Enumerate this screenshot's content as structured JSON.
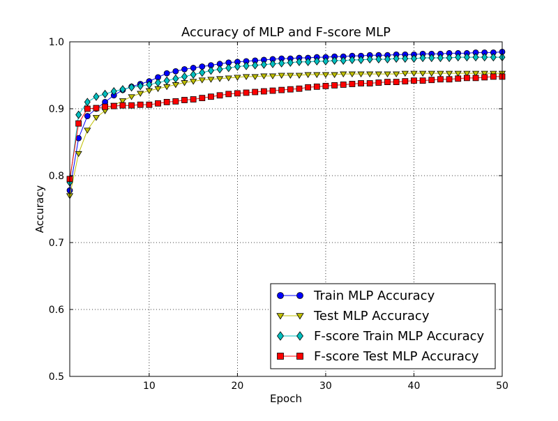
{
  "chart_data": {
    "type": "line",
    "title": "Accuracy of MLP and F-score MLP",
    "xlabel": "Epoch",
    "ylabel": "Accuracy",
    "xlim": [
      1,
      50
    ],
    "ylim": [
      0.5,
      1.0
    ],
    "xticks": [
      10,
      20,
      30,
      40,
      50
    ],
    "xtick_labels": [
      "10",
      "20",
      "30",
      "40",
      "50"
    ],
    "yticks": [
      0.5,
      0.6,
      0.7,
      0.8,
      0.9,
      1.0
    ],
    "ytick_labels": [
      "0.5",
      "0.6",
      "0.7",
      "0.8",
      "0.9",
      "1.0"
    ],
    "grid": true,
    "legend_position": "lower-right",
    "x": [
      1,
      2,
      3,
      4,
      5,
      6,
      7,
      8,
      9,
      10,
      11,
      12,
      13,
      14,
      15,
      16,
      17,
      18,
      19,
      20,
      21,
      22,
      23,
      24,
      25,
      26,
      27,
      28,
      29,
      30,
      31,
      32,
      33,
      34,
      35,
      36,
      37,
      38,
      39,
      40,
      41,
      42,
      43,
      44,
      45,
      46,
      47,
      48,
      49,
      50
    ],
    "series": [
      {
        "name": "Train MLP Accuracy",
        "color": "#0000ff",
        "marker": "circle",
        "values": [
          0.778,
          0.856,
          0.889,
          0.9,
          0.91,
          0.92,
          0.928,
          0.933,
          0.937,
          0.941,
          0.947,
          0.953,
          0.956,
          0.959,
          0.961,
          0.963,
          0.965,
          0.967,
          0.969,
          0.97,
          0.971,
          0.972,
          0.973,
          0.974,
          0.975,
          0.975,
          0.976,
          0.976,
          0.977,
          0.977,
          0.978,
          0.978,
          0.979,
          0.979,
          0.98,
          0.98,
          0.98,
          0.981,
          0.981,
          0.981,
          0.982,
          0.982,
          0.982,
          0.983,
          0.983,
          0.983,
          0.984,
          0.984,
          0.984,
          0.985
        ]
      },
      {
        "name": "Test MLP Accuracy",
        "color": "#bfbf00",
        "marker": "triangle-down",
        "values": [
          0.77,
          0.833,
          0.868,
          0.887,
          0.897,
          0.905,
          0.912,
          0.918,
          0.923,
          0.927,
          0.93,
          0.933,
          0.936,
          0.939,
          0.941,
          0.943,
          0.944,
          0.945,
          0.946,
          0.947,
          0.948,
          0.948,
          0.949,
          0.949,
          0.95,
          0.95,
          0.95,
          0.951,
          0.951,
          0.951,
          0.951,
          0.952,
          0.952,
          0.952,
          0.952,
          0.952,
          0.952,
          0.952,
          0.953,
          0.953,
          0.953,
          0.953,
          0.953,
          0.953,
          0.953,
          0.953,
          0.953,
          0.953,
          0.953,
          0.953
        ]
      },
      {
        "name": "F-score Train MLP Accuracy",
        "color": "#00bfbf",
        "marker": "diamond",
        "values": [
          0.79,
          0.891,
          0.91,
          0.918,
          0.922,
          0.926,
          0.929,
          0.932,
          0.934,
          0.936,
          0.939,
          0.942,
          0.945,
          0.948,
          0.951,
          0.954,
          0.957,
          0.959,
          0.961,
          0.963,
          0.964,
          0.965,
          0.966,
          0.967,
          0.968,
          0.969,
          0.97,
          0.97,
          0.971,
          0.971,
          0.972,
          0.972,
          0.973,
          0.973,
          0.974,
          0.974,
          0.974,
          0.975,
          0.975,
          0.975,
          0.976,
          0.976,
          0.976,
          0.976,
          0.977,
          0.977,
          0.977,
          0.977,
          0.977,
          0.977
        ]
      },
      {
        "name": "F-score Test MLP Accuracy",
        "color": "#ff0000",
        "marker": "square",
        "values": [
          0.795,
          0.878,
          0.9,
          0.901,
          0.903,
          0.904,
          0.905,
          0.905,
          0.906,
          0.906,
          0.908,
          0.91,
          0.911,
          0.913,
          0.914,
          0.916,
          0.918,
          0.92,
          0.922,
          0.923,
          0.924,
          0.925,
          0.926,
          0.927,
          0.928,
          0.929,
          0.93,
          0.932,
          0.933,
          0.934,
          0.935,
          0.936,
          0.937,
          0.938,
          0.938,
          0.939,
          0.94,
          0.94,
          0.941,
          0.942,
          0.942,
          0.943,
          0.944,
          0.944,
          0.945,
          0.946,
          0.946,
          0.947,
          0.948,
          0.948
        ]
      }
    ]
  }
}
